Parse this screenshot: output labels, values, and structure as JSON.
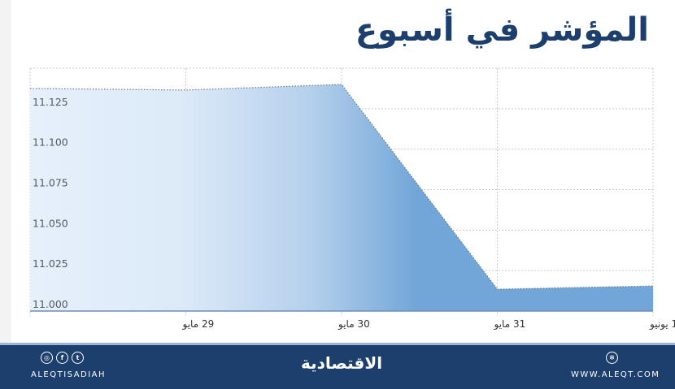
{
  "header": {
    "title": "المؤشر في أسبوع"
  },
  "footer": {
    "social_icons": [
      "instagram-icon",
      "facebook-icon",
      "twitter-icon"
    ],
    "handle": "ALEQTISADIAH",
    "brand": "الاقتصادية",
    "website_icon": "globe-icon",
    "website": "WWW.ALEQT.COM"
  },
  "colors": {
    "title": "#1c3f6e",
    "footer_bg": "#1c3f6e",
    "area_light": "#e3eefa",
    "area_dark": "#6fa3d6"
  },
  "chart_data": {
    "type": "area",
    "title": "المؤشر في أسبوع",
    "xlabel": "",
    "ylabel": "",
    "categories": [
      "",
      "29 مايو",
      "30 مايو",
      "31 مايو",
      "1 يونيو"
    ],
    "x_tick_labels": [
      "29 مايو",
      "30 مايو",
      "31 مايو",
      "1 يونيو"
    ],
    "values": [
      11.1375,
      11.1365,
      11.14,
      11.0135,
      11.0155
    ],
    "y_ticks": [
      "11.000",
      "11.025",
      "11.050",
      "11.075",
      "11.100",
      "11.125"
    ],
    "ylim": [
      11.0,
      11.15
    ],
    "grid": true,
    "legend": null
  }
}
